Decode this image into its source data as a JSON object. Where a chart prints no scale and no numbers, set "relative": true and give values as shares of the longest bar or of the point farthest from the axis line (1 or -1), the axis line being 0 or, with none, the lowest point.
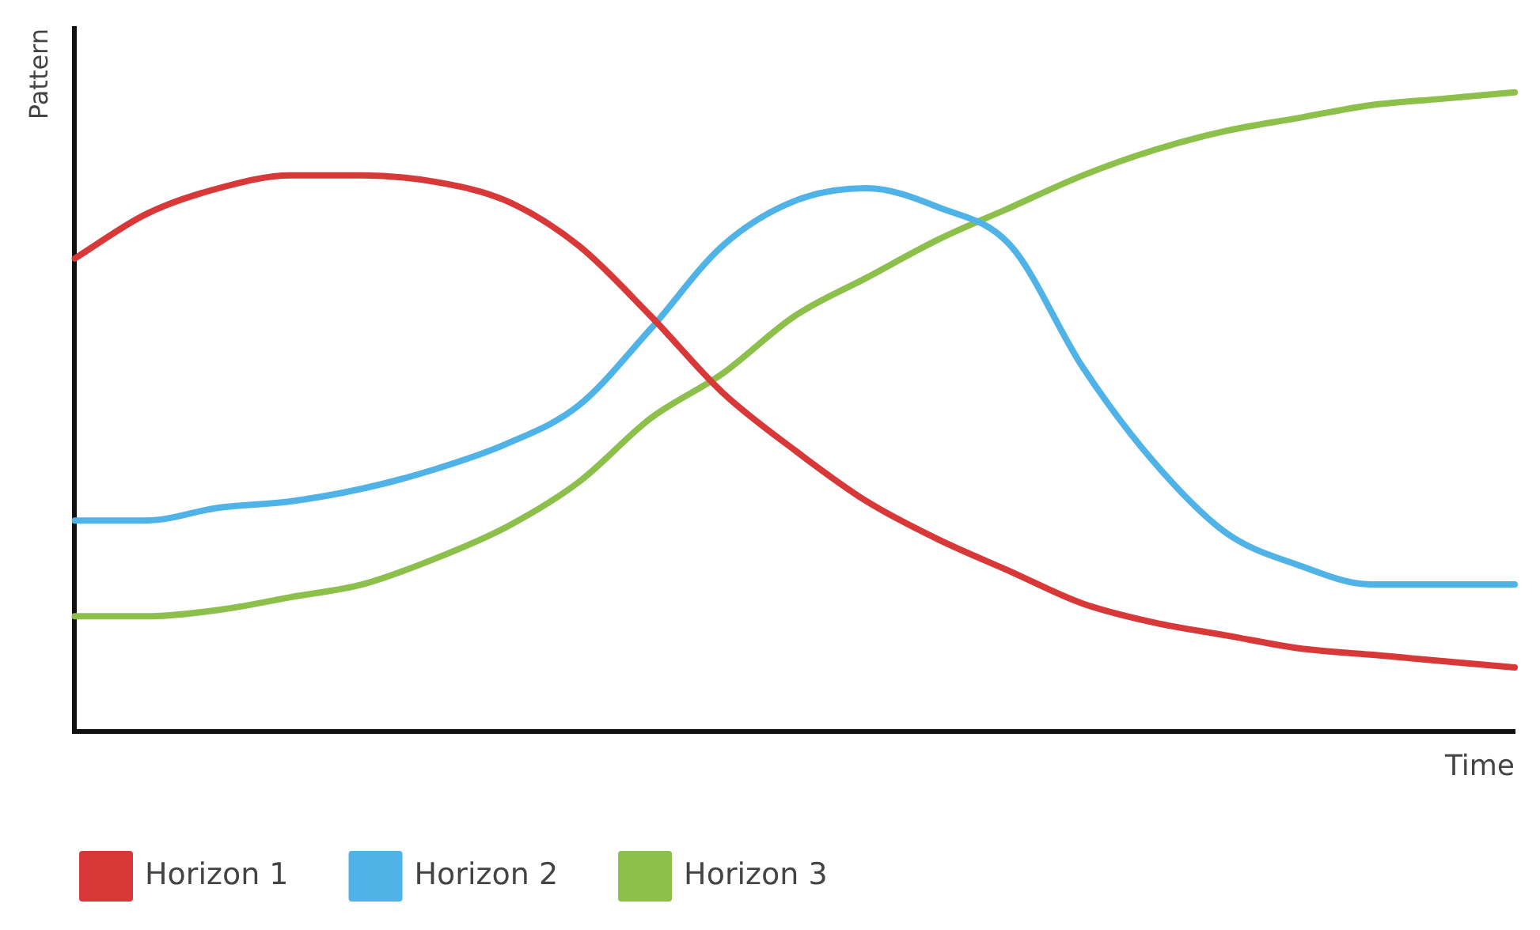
{
  "chart_data": {
    "type": "line",
    "relative": true,
    "xlabel": "Time",
    "ylabel": "Pattern",
    "legend": "bottom left",
    "grid": false,
    "marker": "none",
    "line_style": "solid",
    "tick_labels": false,
    "categories": [
      null,
      null,
      null,
      null,
      null,
      null,
      null,
      null,
      null,
      null,
      null,
      null,
      null,
      null,
      null,
      null,
      null,
      null,
      null,
      null,
      null
    ],
    "series": [
      {
        "name": "Horizon 1",
        "color": "#d93838",
        "values": [
          0.74,
          0.81,
          0.85,
          0.87,
          0.87,
          0.86,
          0.83,
          0.76,
          0.65,
          0.53,
          0.44,
          0.36,
          0.3,
          0.25,
          0.2,
          0.17,
          0.15,
          0.13,
          0.12,
          0.11,
          0.1
        ]
      },
      {
        "name": "Horizon 2",
        "color": "#4fb3e8",
        "values": [
          0.33,
          0.33,
          0.35,
          0.36,
          0.38,
          0.41,
          0.45,
          0.51,
          0.63,
          0.76,
          0.83,
          0.85,
          0.82,
          0.76,
          0.57,
          0.42,
          0.31,
          0.26,
          0.23,
          0.23,
          0.23
        ]
      },
      {
        "name": "Horizon 3",
        "color": "#8cc04b",
        "values": [
          0.18,
          0.18,
          0.19,
          0.21,
          0.23,
          0.27,
          0.32,
          0.39,
          0.49,
          0.56,
          0.65,
          0.71,
          0.77,
          0.82,
          0.87,
          0.91,
          0.94,
          0.96,
          0.98,
          0.99,
          1
        ]
      }
    ]
  }
}
